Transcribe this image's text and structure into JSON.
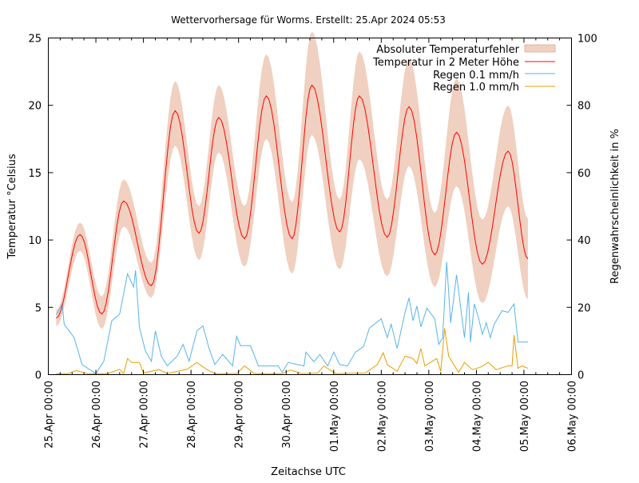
{
  "chart_data": {
    "type": "line",
    "title": "Wettervorhersage für Worms. Erstellt: 25.Apr 2024 05:53",
    "xlabel": "Zeitachse UTC",
    "ylabel": "Temperatur °Celsius",
    "y2label": "Regenwahrscheinlichkeit in %",
    "xlim": [
      "2024-04-25 00:00",
      "2024-05-06 00:00"
    ],
    "ylim": [
      0,
      25
    ],
    "y2lim": [
      0,
      100
    ],
    "xticks": [
      "25.Apr 00:00",
      "26.Apr 00:00",
      "27.Apr 00:00",
      "28.Apr 00:00",
      "29.Apr 00:00",
      "30.Apr 00:00",
      "01.May 00:00",
      "02.May 00:00",
      "03.May 00:00",
      "04.May 00:00",
      "05.May 00:00",
      "06.May 00:00"
    ],
    "yticks": [
      "0",
      "5",
      "10",
      "15",
      "20",
      "25"
    ],
    "y2ticks": [
      "0",
      "20",
      "40",
      "60",
      "80",
      "100"
    ],
    "grid": false,
    "legend_position": "top-right",
    "colors": {
      "band": "#f0d0c0",
      "temp": "#ff0000",
      "rain01": "#56b4e9",
      "rain10": "#e69f00"
    },
    "legend": [
      "Absoluter Temperaturfehler",
      "Temperatur in 2 Meter Höhe",
      "Regen 0.1 mm/h",
      "Regen 1.0 mm/h"
    ],
    "temperature": [
      [
        "2024-04-25 04:00",
        4.2,
        3.6,
        4.8
      ],
      [
        "2024-04-25 16:00",
        10.4,
        9.2,
        11.3
      ],
      [
        "2024-04-26 03:00",
        4.5,
        3.4,
        5.8
      ],
      [
        "2024-04-26 14:00",
        12.9,
        11.0,
        14.5
      ],
      [
        "2024-04-27 04:00",
        6.6,
        5.7,
        8.3
      ],
      [
        "2024-04-27 16:00",
        19.6,
        17.0,
        21.8
      ],
      [
        "2024-04-28 04:00",
        10.5,
        8.5,
        12.5
      ],
      [
        "2024-04-28 14:00",
        19.1,
        16.5,
        21.5
      ],
      [
        "2024-04-29 03:00",
        10.1,
        8.0,
        12.5
      ],
      [
        "2024-04-29 14:00",
        20.7,
        17.5,
        23.8
      ],
      [
        "2024-04-30 03:00",
        10.1,
        7.5,
        12.8
      ],
      [
        "2024-04-30 13:00",
        21.5,
        17.8,
        25.5
      ],
      [
        "2024-05-01 03:00",
        10.6,
        7.8,
        13.0
      ],
      [
        "2024-05-01 13:00",
        20.7,
        16.0,
        24.0
      ],
      [
        "2024-05-02 03:00",
        10.2,
        7.3,
        13.0
      ],
      [
        "2024-05-02 14:00",
        19.9,
        15.5,
        23.5
      ],
      [
        "2024-05-03 03:00",
        8.9,
        6.5,
        12.0
      ],
      [
        "2024-05-03 14:00",
        18.0,
        14.0,
        22.0
      ],
      [
        "2024-05-04 03:00",
        8.2,
        5.3,
        11.5
      ],
      [
        "2024-05-04 16:00",
        16.6,
        12.5,
        20.0
      ],
      [
        "2024-05-05 02:00",
        8.6,
        5.6,
        11.6
      ]
    ],
    "rain_0_1": [
      [
        "2024-04-25 04:00",
        17.8
      ],
      [
        "2024-04-25 07:00",
        21
      ],
      [
        "2024-04-25 08:00",
        15
      ],
      [
        "2024-04-25 13:00",
        11
      ],
      [
        "2024-04-25 17:00",
        3
      ],
      [
        "2024-04-26 00:00",
        0.3
      ],
      [
        "2024-04-26 04:00",
        4
      ],
      [
        "2024-04-26 08:00",
        16
      ],
      [
        "2024-04-26 12:00",
        18
      ],
      [
        "2024-04-26 16:00",
        30
      ],
      [
        "2024-04-26 19:00",
        26
      ],
      [
        "2024-04-26 20:00",
        31
      ],
      [
        "2024-04-26 22:00",
        14
      ],
      [
        "2024-04-27 01:00",
        7
      ],
      [
        "2024-04-27 04:00",
        4
      ],
      [
        "2024-04-27 06:00",
        13
      ],
      [
        "2024-04-27 09:00",
        5.5
      ],
      [
        "2024-04-27 12:00",
        2.6
      ],
      [
        "2024-04-27 17:00",
        5.5
      ],
      [
        "2024-04-27 20:00",
        9
      ],
      [
        "2024-04-27 23:00",
        4
      ],
      [
        "2024-04-28 03:00",
        13
      ],
      [
        "2024-04-28 06:00",
        14.5
      ],
      [
        "2024-04-28 09:00",
        8
      ],
      [
        "2024-04-28 12:00",
        3
      ],
      [
        "2024-04-28 16:00",
        6
      ],
      [
        "2024-04-28 21:00",
        2.6
      ],
      [
        "2024-04-28 23:00",
        11.4
      ],
      [
        "2024-04-29 01:00",
        8.6
      ],
      [
        "2024-04-29 06:00",
        8.6
      ],
      [
        "2024-04-29 10:00",
        2.6
      ],
      [
        "2024-04-29 20:00",
        2.6
      ],
      [
        "2024-04-29 22:00",
        0.7
      ],
      [
        "2024-04-30 01:00",
        3.6
      ],
      [
        "2024-04-30 09:00",
        2.6
      ],
      [
        "2024-04-30 10:00",
        6.7
      ],
      [
        "2024-04-30 14:00",
        3.8
      ],
      [
        "2024-04-30 17:00",
        6
      ],
      [
        "2024-04-30 21:00",
        2.6
      ],
      [
        "2024-05-01 00:00",
        6.7
      ],
      [
        "2024-05-01 03:00",
        3
      ],
      [
        "2024-05-01 07:00",
        2.6
      ],
      [
        "2024-05-01 11:00",
        6.7
      ],
      [
        "2024-05-01 15:00",
        8.3
      ],
      [
        "2024-05-01 18:00",
        13.8
      ],
      [
        "2024-05-02 00:00",
        16.6
      ],
      [
        "2024-05-02 03:00",
        11
      ],
      [
        "2024-05-02 05:00",
        15
      ],
      [
        "2024-05-02 08:00",
        7.8
      ],
      [
        "2024-05-02 12:00",
        18.5
      ],
      [
        "2024-05-02 14:00",
        22.8
      ],
      [
        "2024-05-02 16:00",
        16
      ],
      [
        "2024-05-02 18:00",
        20.4
      ],
      [
        "2024-05-02 20:00",
        14.2
      ],
      [
        "2024-05-02 23:00",
        19.7
      ],
      [
        "2024-05-03 03:00",
        16.6
      ],
      [
        "2024-05-03 05:00",
        9
      ],
      [
        "2024-05-03 07:00",
        11
      ],
      [
        "2024-05-03 09:00",
        33.5
      ],
      [
        "2024-05-03 11:00",
        15.4
      ],
      [
        "2024-05-03 14:00",
        29.7
      ],
      [
        "2024-05-03 18:00",
        11
      ],
      [
        "2024-05-03 20:00",
        24.5
      ],
      [
        "2024-05-03 21:00",
        9.7
      ],
      [
        "2024-05-03 23:00",
        21
      ],
      [
        "2024-05-04 01:00",
        17
      ],
      [
        "2024-05-04 03:00",
        12
      ],
      [
        "2024-05-04 05:00",
        15.4
      ],
      [
        "2024-05-04 07:00",
        11
      ],
      [
        "2024-05-04 09:00",
        15
      ],
      [
        "2024-05-04 13:00",
        19
      ],
      [
        "2024-05-04 16:00",
        18.5
      ],
      [
        "2024-05-04 19:00",
        21
      ],
      [
        "2024-05-04 21:00",
        9.7
      ],
      [
        "2024-05-04 23:00",
        9.7
      ],
      [
        "2024-05-05 02:00",
        9.7
      ]
    ],
    "rain_1_0": [
      [
        "2024-04-25 04:00",
        0.3
      ],
      [
        "2024-04-25 10:00",
        0.3
      ],
      [
        "2024-04-25 14:00",
        1.2
      ],
      [
        "2024-04-25 20:00",
        0.3
      ],
      [
        "2024-04-26 06:00",
        0.3
      ],
      [
        "2024-04-26 12:00",
        1.6
      ],
      [
        "2024-04-26 14:00",
        0.3
      ],
      [
        "2024-04-26 16:00",
        4.8
      ],
      [
        "2024-04-26 18:00",
        3.6
      ],
      [
        "2024-04-26 22:00",
        3.6
      ],
      [
        "2024-04-27 00:00",
        0.5
      ],
      [
        "2024-04-27 08:00",
        1.5
      ],
      [
        "2024-04-27 12:00",
        0.3
      ],
      [
        "2024-04-27 22:00",
        1.6
      ],
      [
        "2024-04-28 03:00",
        3.6
      ],
      [
        "2024-04-28 08:00",
        1.5
      ],
      [
        "2024-04-28 12:00",
        0.3
      ],
      [
        "2024-04-28 23:00",
        0.3
      ],
      [
        "2024-04-29 03:00",
        2.6
      ],
      [
        "2024-04-29 08:00",
        0.3
      ],
      [
        "2024-04-29 22:00",
        0.3
      ],
      [
        "2024-04-30 02:00",
        1.4
      ],
      [
        "2024-04-30 08:00",
        0.3
      ],
      [
        "2024-04-30 16:00",
        0.5
      ],
      [
        "2024-04-30 19:00",
        2.6
      ],
      [
        "2024-05-01 01:00",
        0.3
      ],
      [
        "2024-05-01 16:00",
        0.5
      ],
      [
        "2024-05-01 22:00",
        3
      ],
      [
        "2024-05-02 01:00",
        6.5
      ],
      [
        "2024-05-02 03:00",
        3
      ],
      [
        "2024-05-02 08:00",
        1
      ],
      [
        "2024-05-02 12:00",
        5.5
      ],
      [
        "2024-05-02 16:00",
        4.8
      ],
      [
        "2024-05-02 18:00",
        3.3
      ],
      [
        "2024-05-02 20:00",
        7.8
      ],
      [
        "2024-05-02 22:00",
        2.6
      ],
      [
        "2024-05-03 04:00",
        4.8
      ],
      [
        "2024-05-03 06:00",
        1
      ],
      [
        "2024-05-03 08:00",
        13.8
      ],
      [
        "2024-05-03 10:00",
        5.5
      ],
      [
        "2024-05-03 15:00",
        0.7
      ],
      [
        "2024-05-03 18:00",
        3.6
      ],
      [
        "2024-05-03 22:00",
        1.5
      ],
      [
        "2024-05-04 02:00",
        2.2
      ],
      [
        "2024-05-04 06:00",
        3.6
      ],
      [
        "2024-05-04 10:00",
        1.5
      ],
      [
        "2024-05-04 16:00",
        2.6
      ],
      [
        "2024-05-04 18:00",
        2.6
      ],
      [
        "2024-05-04 19:00",
        11.7
      ],
      [
        "2024-05-04 21:00",
        1.9
      ],
      [
        "2024-05-04 23:00",
        2.6
      ],
      [
        "2024-05-05 02:00",
        1.9
      ]
    ]
  }
}
